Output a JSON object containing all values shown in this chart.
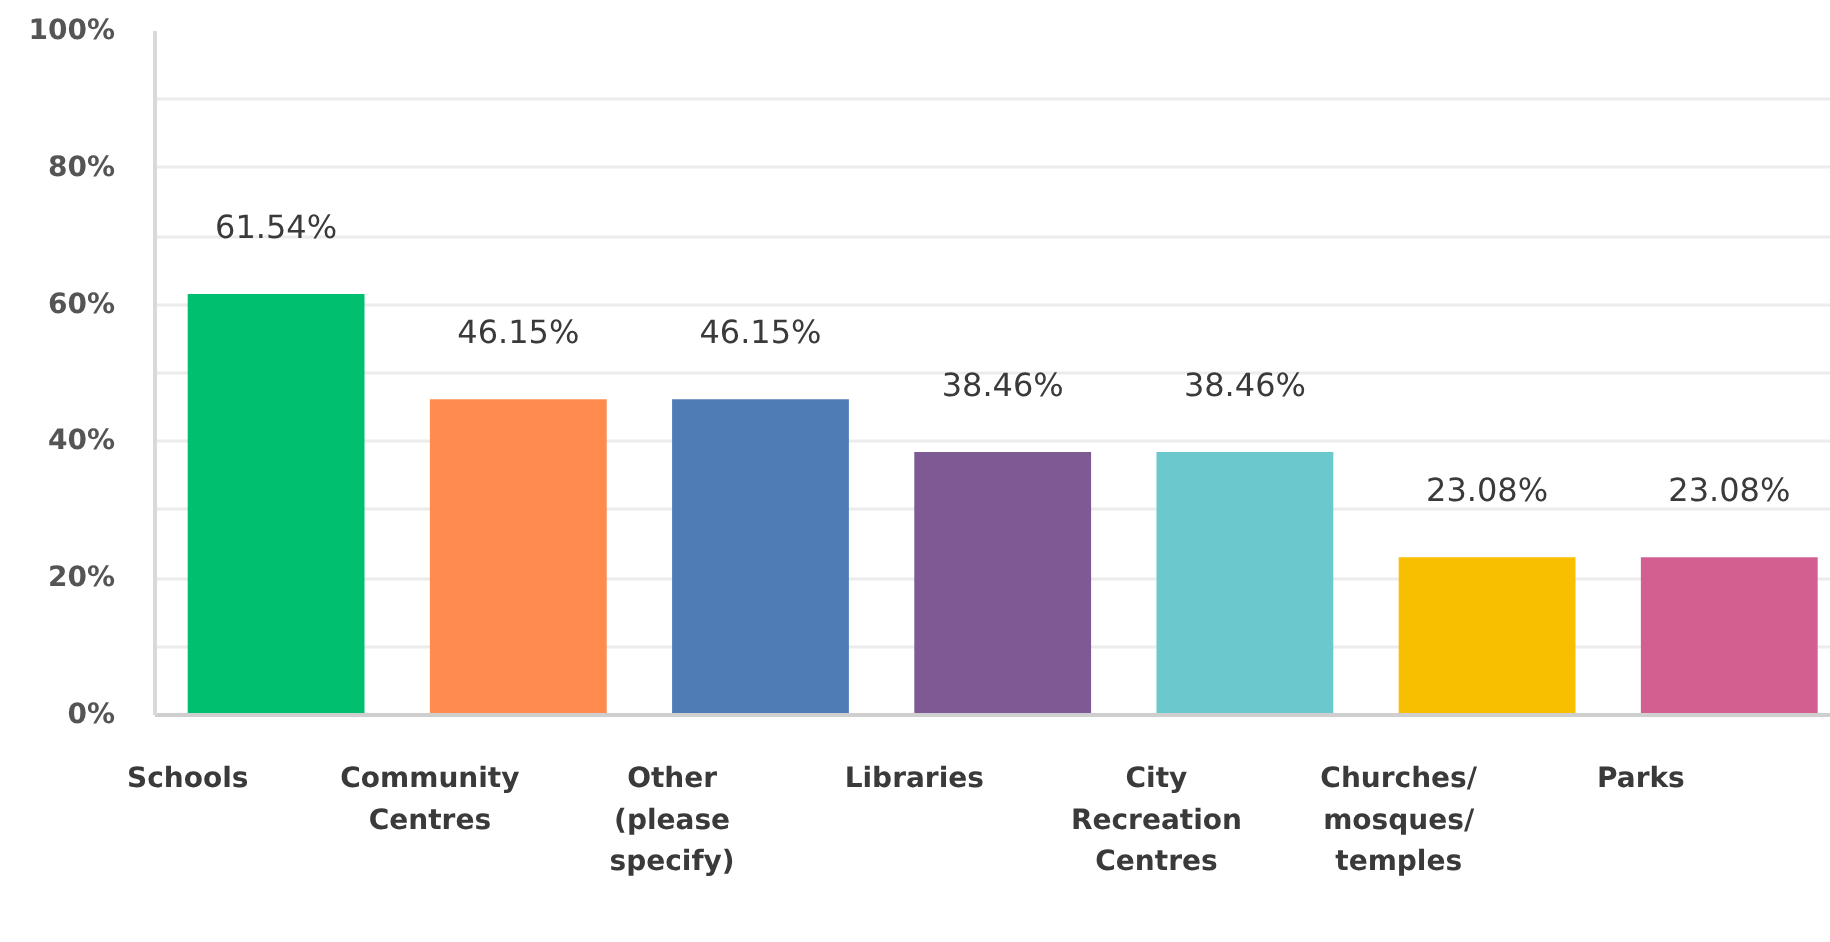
{
  "chart_data": {
    "type": "bar",
    "categories": [
      "Schools",
      "Community Centres",
      "Other (please specify)",
      "Libraries",
      "City Recreation Centres",
      "Churches/mosques/temples",
      "Parks"
    ],
    "values": [
      61.54,
      46.15,
      46.15,
      38.46,
      38.46,
      23.08,
      23.08
    ],
    "value_labels": [
      "61.54%",
      "46.15%",
      "46.15%",
      "38.46%",
      "38.46%",
      "23.08%",
      "23.08%"
    ],
    "colors": [
      "#00bf6f",
      "#ff8b4f",
      "#507cb6",
      "#7d5a94",
      "#6bc8cd",
      "#f8be00",
      "#d25f90"
    ],
    "ylim": [
      0,
      100
    ],
    "yticks": [
      {
        "value": 0,
        "label": "0%"
      },
      {
        "value": 10,
        "label": null
      },
      {
        "value": 20,
        "label": "20%"
      },
      {
        "value": 30,
        "label": null
      },
      {
        "value": 40,
        "label": "40%"
      },
      {
        "value": 50,
        "label": null
      },
      {
        "value": 60,
        "label": "60%"
      },
      {
        "value": 70,
        "label": null
      },
      {
        "value": 80,
        "label": "80%"
      },
      {
        "value": 90,
        "label": null
      },
      {
        "value": 100,
        "label": "100%"
      }
    ],
    "grid": "y"
  }
}
